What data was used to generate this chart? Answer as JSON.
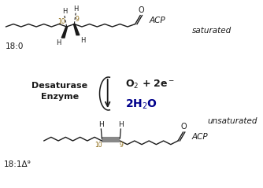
{
  "bg_color": "#ffffff",
  "line_color": "#1a1a1a",
  "dark_blue": "#00008B",
  "label_color": "#8B6914",
  "gray_db": "#888888",
  "saturated_label": "18:0",
  "saturated_tag": "saturated",
  "unsaturated_label": "18:1Δ⁹",
  "unsaturated_tag": "unsaturated",
  "enzyme_text": "Desaturase\nEnzyme",
  "reactant_text": "O$_2$ + 2e$^-$",
  "product_text": "2H$_2$O",
  "acp_text": "ACP"
}
